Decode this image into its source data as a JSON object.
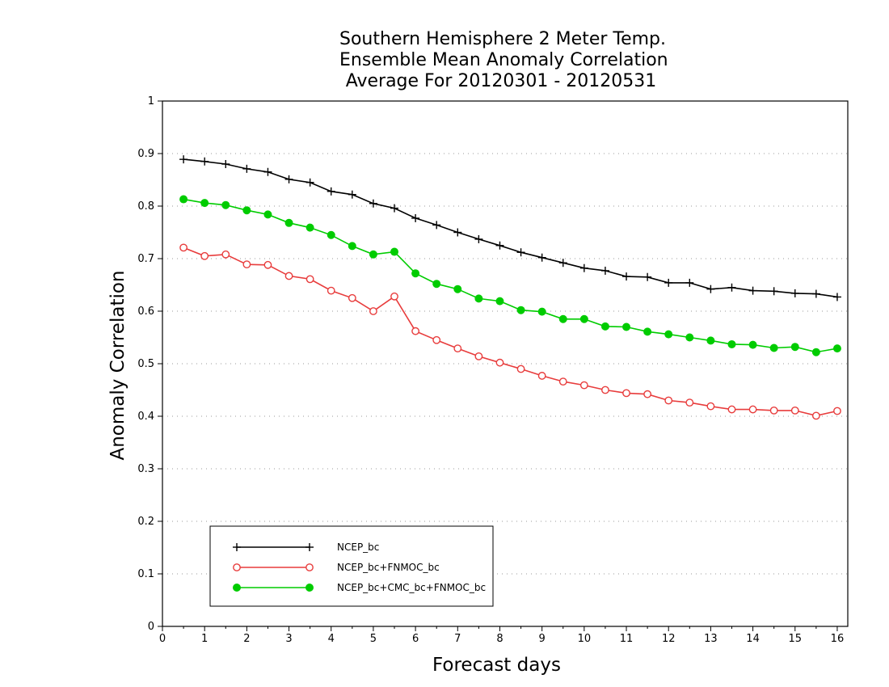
{
  "chart_data": {
    "type": "line",
    "title": [
      "Southern Hemisphere 2 Meter Temp.",
      "Ensemble Mean Anomaly Correlation",
      "Average For 20120301 - 20120531"
    ],
    "xlabel": "Forecast days",
    "ylabel": "Anomaly Correlation",
    "xlim": [
      0,
      16.25
    ],
    "ylim": [
      0,
      1
    ],
    "x_ticks": [
      0,
      1,
      2,
      3,
      4,
      5,
      6,
      7,
      8,
      9,
      10,
      11,
      12,
      13,
      14,
      15,
      16
    ],
    "y_ticks": [
      0,
      0.1,
      0.2,
      0.3,
      0.4,
      0.5,
      0.6,
      0.7,
      0.8,
      0.9,
      1
    ],
    "y_tick_labels": [
      "0",
      "0.1",
      "0.2",
      "0.3",
      "0.4",
      "0.5",
      "0.6",
      "0.7",
      "0.8",
      "0.9",
      "1"
    ],
    "grid": "horizontal dotted",
    "legend_position": "bottom-left",
    "x": [
      0.5,
      1,
      1.5,
      2,
      2.5,
      3,
      3.5,
      4,
      4.5,
      5,
      5.5,
      6,
      6.5,
      7,
      7.5,
      8,
      8.5,
      9,
      9.5,
      10,
      10.5,
      11,
      11.5,
      12,
      12.5,
      13,
      13.5,
      14,
      14.5,
      15,
      15.5,
      16
    ],
    "series": [
      {
        "name": "NCEP_bc",
        "color": "#000000",
        "marker": "plus",
        "values": [
          0.889,
          0.885,
          0.88,
          0.871,
          0.865,
          0.851,
          0.845,
          0.828,
          0.822,
          0.805,
          0.796,
          0.777,
          0.764,
          0.75,
          0.737,
          0.725,
          0.712,
          0.702,
          0.692,
          0.682,
          0.677,
          0.666,
          0.665,
          0.654,
          0.654,
          0.642,
          0.645,
          0.639,
          0.638,
          0.634,
          0.633,
          0.627
        ]
      },
      {
        "name": "NCEP_bc+FNMOC_bc",
        "color": "#e83c3c",
        "marker": "open-circle",
        "values": [
          0.721,
          0.705,
          0.708,
          0.689,
          0.688,
          0.667,
          0.661,
          0.639,
          0.625,
          0.6,
          0.628,
          0.562,
          0.545,
          0.529,
          0.514,
          0.502,
          0.49,
          0.477,
          0.466,
          0.459,
          0.45,
          0.444,
          0.442,
          0.43,
          0.426,
          0.419,
          0.413,
          0.413,
          0.411,
          0.411,
          0.401,
          0.41
        ]
      },
      {
        "name": "NCEP_bc+CMC_bc+FNMOC_bc",
        "color": "#00cc00",
        "marker": "filled-circle",
        "values": [
          0.813,
          0.806,
          0.802,
          0.792,
          0.784,
          0.768,
          0.759,
          0.745,
          0.724,
          0.708,
          0.713,
          0.672,
          0.652,
          0.642,
          0.624,
          0.619,
          0.602,
          0.599,
          0.585,
          0.585,
          0.571,
          0.57,
          0.561,
          0.556,
          0.55,
          0.544,
          0.537,
          0.536,
          0.53,
          0.532,
          0.522,
          0.529
        ]
      }
    ]
  }
}
